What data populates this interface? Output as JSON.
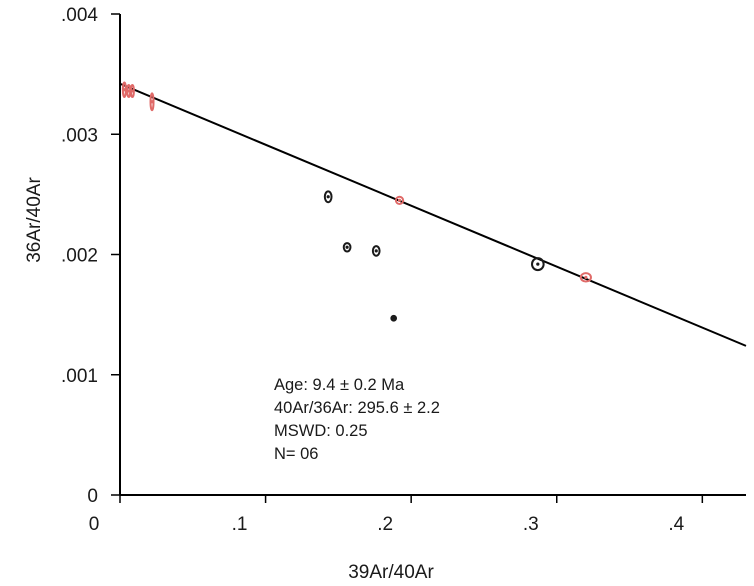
{
  "chart_data": {
    "type": "scatter",
    "title": "",
    "xlabel": "39Ar/40Ar",
    "ylabel": "36Ar/40Ar",
    "xlim": [
      0,
      0.43
    ],
    "ylim": [
      0,
      0.004
    ],
    "x_ticks": [
      {
        "value": 0,
        "label": "0"
      },
      {
        "value": 0.1,
        "label": ".1"
      },
      {
        "value": 0.2,
        "label": ".2"
      },
      {
        "value": 0.3,
        "label": ".3"
      },
      {
        "value": 0.4,
        "label": ".4"
      }
    ],
    "y_ticks": [
      {
        "value": 0,
        "label": "0"
      },
      {
        "value": 0.001,
        "label": ".001"
      },
      {
        "value": 0.002,
        "label": ".002"
      },
      {
        "value": 0.003,
        "label": ".003"
      },
      {
        "value": 0.004,
        "label": ".004"
      }
    ],
    "grid": false,
    "fit_line": {
      "x": [
        0,
        0.43
      ],
      "y": [
        0.00342,
        0.00124
      ],
      "color": "#000000"
    },
    "series": [
      {
        "color": "#e06a68",
        "points": [
          {
            "x": 0.003,
            "y": 0.00337,
            "rx": 0.0008,
            "ry": 6e-05
          },
          {
            "x": 0.006,
            "y": 0.00336,
            "rx": 0.0008,
            "ry": 5e-05
          },
          {
            "x": 0.0085,
            "y": 0.00336,
            "rx": 0.0008,
            "ry": 5e-05
          },
          {
            "x": 0.022,
            "y": 0.00327,
            "rx": 0.0009,
            "ry": 7e-05
          },
          {
            "x": 0.192,
            "y": 0.00245,
            "rx": 0.0025,
            "ry": 3e-05
          },
          {
            "x": 0.32,
            "y": 0.00181,
            "rx": 0.0035,
            "ry": 3.5e-05
          }
        ]
      },
      {
        "color": "#1a1a1a",
        "points": [
          {
            "x": 0.143,
            "y": 0.00248,
            "rx": 0.0023,
            "ry": 4.5e-05
          },
          {
            "x": 0.156,
            "y": 0.00206,
            "rx": 0.0023,
            "ry": 3.5e-05
          },
          {
            "x": 0.176,
            "y": 0.00203,
            "rx": 0.0023,
            "ry": 4e-05
          },
          {
            "x": 0.188,
            "y": 0.00147,
            "rx": 0.0016,
            "ry": 2e-05
          },
          {
            "x": 0.287,
            "y": 0.00192,
            "rx": 0.004,
            "ry": 5e-05
          }
        ]
      }
    ],
    "annotations": [
      "Age: 9.4 ± 0.2 Ma",
      "40Ar/36Ar: 295.6 ± 2.2",
      "MSWD: 0.25",
      "N= 06"
    ]
  }
}
